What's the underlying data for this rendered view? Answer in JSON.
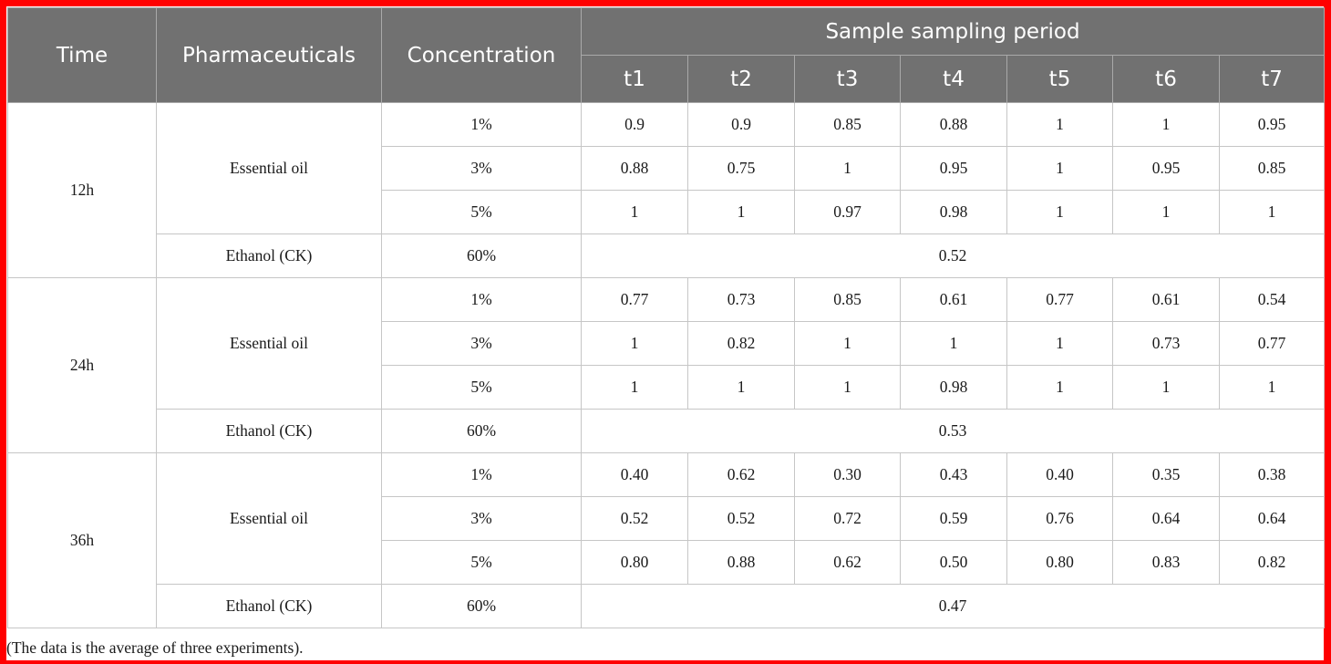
{
  "table": {
    "headers": {
      "time": "Time",
      "pharmaceuticals": "Pharmaceuticals",
      "concentration": "Concentration",
      "period": "Sample sampling period",
      "periods": [
        "t1",
        "t2",
        "t3",
        "t4",
        "t5",
        "t6",
        "t7"
      ]
    },
    "groups": [
      {
        "time": "12h",
        "treatment": "Essential oil",
        "rows": [
          {
            "conc": "1%",
            "values": [
              "0.9",
              "0.9",
              "0.85",
              "0.88",
              "1",
              "1",
              "0.95"
            ]
          },
          {
            "conc": "3%",
            "values": [
              "0.88",
              "0.75",
              "1",
              "0.95",
              "1",
              "0.95",
              "0.85"
            ]
          },
          {
            "conc": "5%",
            "values": [
              "1",
              "1",
              "0.97",
              "0.98",
              "1",
              "1",
              "1"
            ]
          }
        ],
        "control": {
          "name": "Ethanol (CK)",
          "conc": "60%",
          "value": "0.52"
        }
      },
      {
        "time": "24h",
        "treatment": "Essential oil",
        "rows": [
          {
            "conc": "1%",
            "values": [
              "0.77",
              "0.73",
              "0.85",
              "0.61",
              "0.77",
              "0.61",
              "0.54"
            ]
          },
          {
            "conc": "3%",
            "values": [
              "1",
              "0.82",
              "1",
              "1",
              "1",
              "0.73",
              "0.77"
            ]
          },
          {
            "conc": "5%",
            "values": [
              "1",
              "1",
              "1",
              "0.98",
              "1",
              "1",
              "1"
            ]
          }
        ],
        "control": {
          "name": "Ethanol (CK)",
          "conc": "60%",
          "value": "0.53"
        }
      },
      {
        "time": "36h",
        "treatment": "Essential oil",
        "rows": [
          {
            "conc": "1%",
            "values": [
              "0.40",
              "0.62",
              "0.30",
              "0.43",
              "0.40",
              "0.35",
              "0.38"
            ]
          },
          {
            "conc": "3%",
            "values": [
              "0.52",
              "0.52",
              "0.72",
              "0.59",
              "0.76",
              "0.64",
              "0.64"
            ]
          },
          {
            "conc": "5%",
            "values": [
              "0.80",
              "0.88",
              "0.62",
              "0.50",
              "0.80",
              "0.83",
              "0.82"
            ]
          }
        ],
        "control": {
          "name": "Ethanol (CK)",
          "conc": "60%",
          "value": "0.47"
        }
      }
    ],
    "footnote": "(The data is the average of three experiments)."
  },
  "colors": {
    "border_frame": "#ff0000",
    "header_bg": "#717171",
    "header_text": "#ffffff",
    "grid_line": "#c6c6c6"
  }
}
